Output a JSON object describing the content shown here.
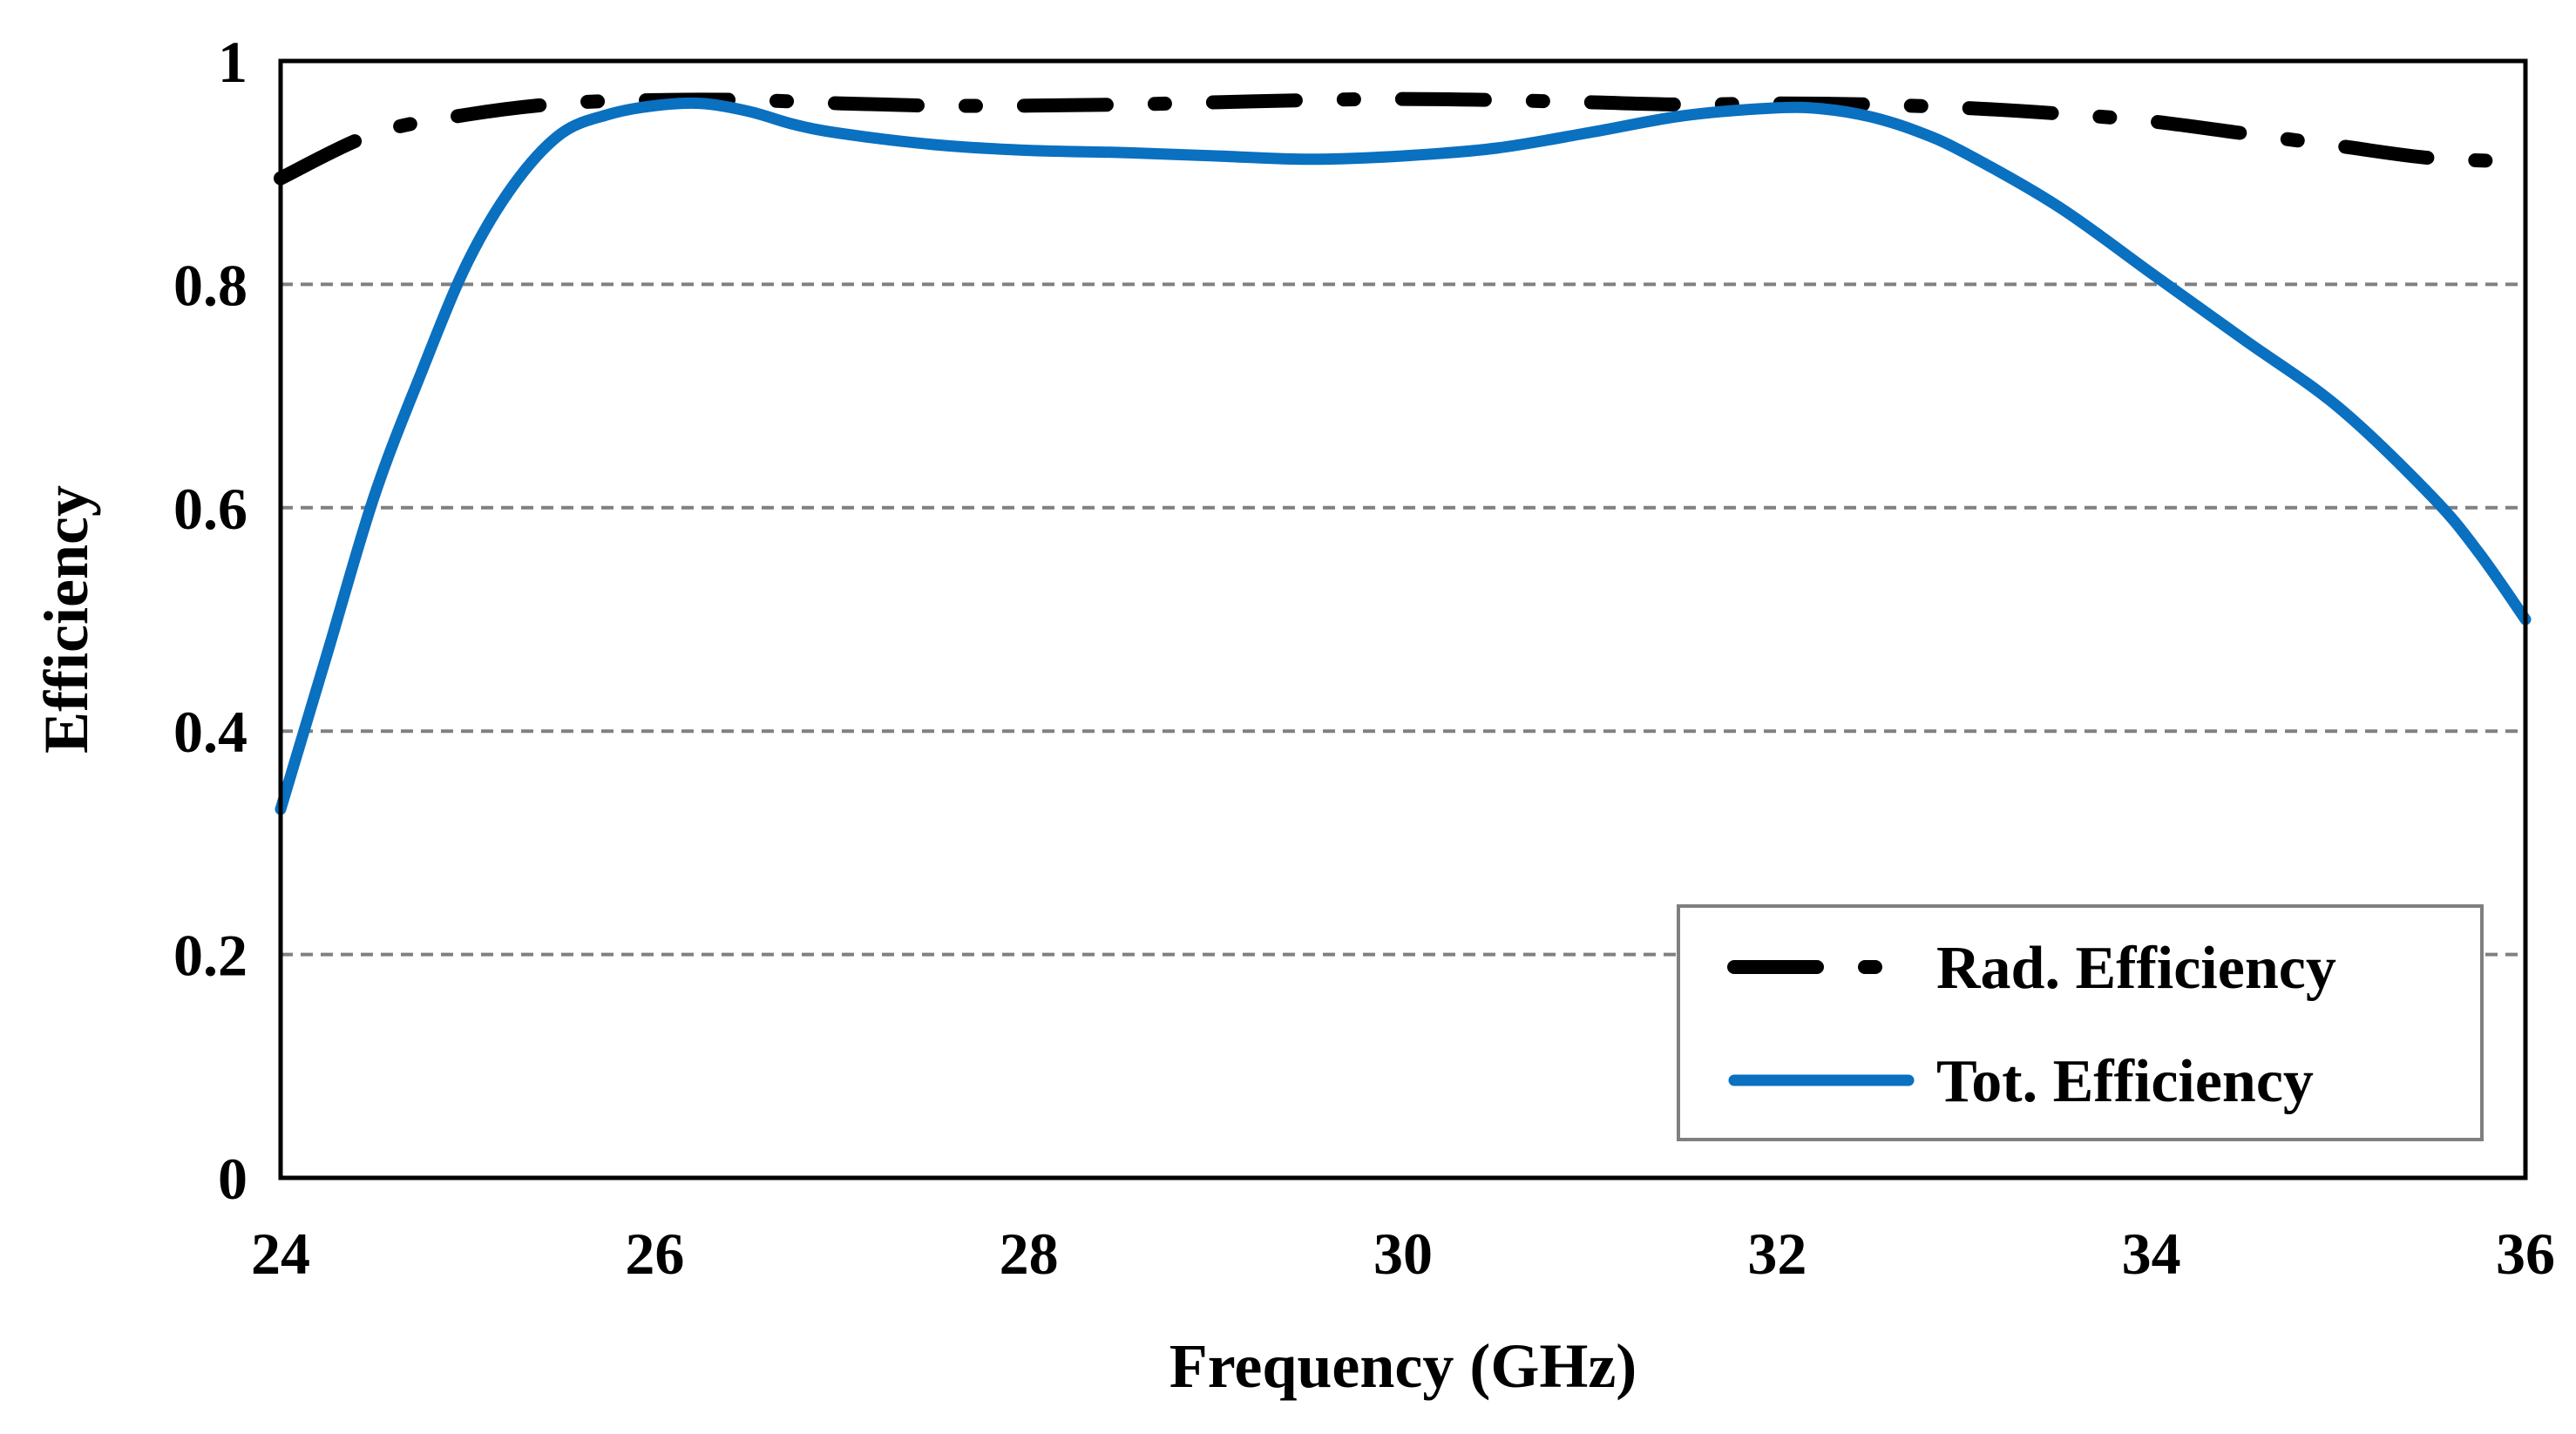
{
  "chart_data": {
    "type": "line",
    "title": "",
    "xlabel": "Frequency (GHz)",
    "ylabel": "Efficiency",
    "xlim": [
      24,
      36
    ],
    "ylim": [
      0,
      1
    ],
    "xticks": [
      24,
      26,
      28,
      30,
      32,
      34,
      36
    ],
    "yticks": [
      0,
      0.2,
      0.4,
      0.6,
      0.8,
      1
    ],
    "xtick_labels": [
      "24",
      "26",
      "28",
      "30",
      "32",
      "34",
      "36"
    ],
    "ytick_labels": [
      "0",
      "0.2",
      "0.4",
      "0.6",
      "0.8",
      "1"
    ],
    "grid": "horizontal dashed",
    "legend_position": "bottom-right",
    "series": [
      {
        "name": "Rad. Efficiency",
        "color": "#000000",
        "style": "dash-dot",
        "x": [
          24,
          24.5,
          25,
          25.5,
          26,
          26.5,
          27,
          27.5,
          28,
          28.5,
          29,
          29.5,
          30,
          30.5,
          31,
          31.5,
          32,
          32.5,
          33,
          33.5,
          34,
          34.5,
          35,
          35.5,
          36
        ],
        "y": [
          0.895,
          0.935,
          0.952,
          0.962,
          0.965,
          0.965,
          0.962,
          0.96,
          0.96,
          0.961,
          0.963,
          0.965,
          0.966,
          0.965,
          0.963,
          0.961,
          0.962,
          0.961,
          0.958,
          0.953,
          0.946,
          0.935,
          0.924,
          0.913,
          0.91
        ]
      },
      {
        "name": "Tot. Efficiency",
        "color": "#0a70c0",
        "style": "solid",
        "x": [
          24,
          24.25,
          24.5,
          24.75,
          25,
          25.25,
          25.5,
          25.75,
          26,
          26.25,
          26.5,
          26.75,
          27,
          27.5,
          28,
          28.5,
          29,
          29.5,
          30,
          30.5,
          31,
          31.5,
          32,
          32.25,
          32.5,
          32.75,
          33,
          33.5,
          34,
          34.5,
          35,
          35.5,
          35.75,
          36
        ],
        "y": [
          0.33,
          0.47,
          0.61,
          0.72,
          0.82,
          0.89,
          0.935,
          0.952,
          0.96,
          0.962,
          0.955,
          0.943,
          0.935,
          0.925,
          0.92,
          0.918,
          0.915,
          0.912,
          0.915,
          0.922,
          0.936,
          0.951,
          0.958,
          0.957,
          0.95,
          0.937,
          0.918,
          0.87,
          0.81,
          0.75,
          0.69,
          0.61,
          0.56,
          0.5
        ]
      }
    ]
  }
}
